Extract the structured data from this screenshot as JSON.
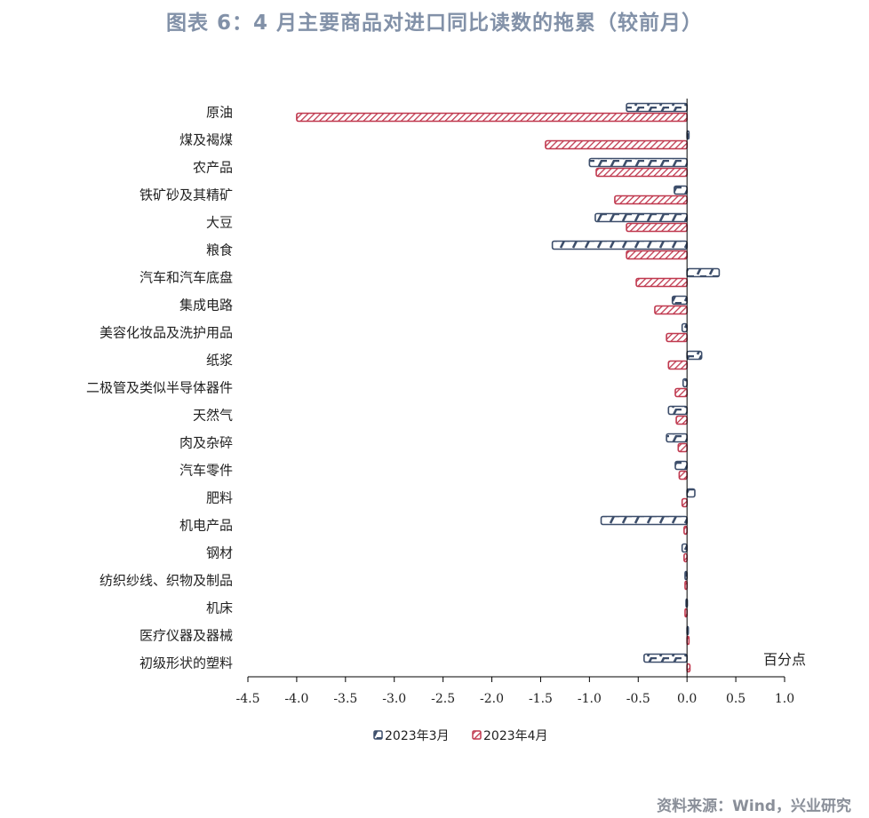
{
  "title": "图表 6：4 月主要商品对进口同比读数的拖累（较前月）",
  "source": "资料来源：Wind，兴业研究",
  "colors": {
    "series1": "#3d4e6b",
    "series2": "#c0394f"
  },
  "chart_data": {
    "type": "bar",
    "orientation": "horizontal",
    "unit": "百分点",
    "categories": [
      "原油",
      "煤及褐煤",
      "农产品",
      "铁矿砂及其精矿",
      "大豆",
      "粮食",
      "汽车和汽车底盘",
      "集成电路",
      "美容化妆品及洗护用品",
      "纸浆",
      "二极管及类似半导体器件",
      "天然气",
      "肉及杂碎",
      "汽车零件",
      "肥料",
      "机电产品",
      "钢材",
      "纺织纱线、织物及制品",
      "机床",
      "医疗仪器及器械",
      "初级形状的塑料"
    ],
    "series": [
      {
        "name": "2023年3月",
        "values": [
          -0.62,
          0.02,
          -1.0,
          -0.13,
          -0.94,
          -1.38,
          0.33,
          -0.15,
          -0.05,
          0.15,
          -0.04,
          -0.19,
          -0.21,
          -0.12,
          0.08,
          -0.88,
          -0.05,
          -0.02,
          -0.01,
          0.01,
          -0.44
        ]
      },
      {
        "name": "2023年4月",
        "values": [
          -4.0,
          -1.45,
          -0.93,
          -0.74,
          -0.62,
          -0.62,
          -0.52,
          -0.33,
          -0.21,
          -0.19,
          -0.12,
          -0.11,
          -0.09,
          -0.08,
          -0.05,
          -0.03,
          -0.03,
          -0.02,
          -0.02,
          0.02,
          0.03
        ]
      }
    ],
    "xlim": [
      -4.5,
      1.0
    ],
    "xticks": [
      "-4.5",
      "-4.0",
      "-3.5",
      "-3.0",
      "-2.5",
      "-2.0",
      "-1.5",
      "-1.0",
      "-0.5",
      "0.0",
      "0.5",
      "1.0"
    ],
    "legend_position": "bottom",
    "grid": false
  }
}
